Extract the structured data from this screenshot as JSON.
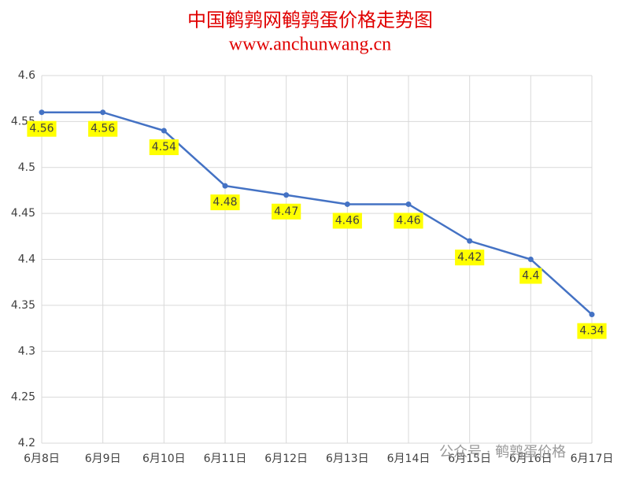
{
  "chart_data": {
    "type": "line",
    "title": "中国鹌鹑网鹌鹑蛋价格走势图",
    "subtitle": "www.anchunwang.cn",
    "categories": [
      "6月8日",
      "6月9日",
      "6月10日",
      "6月11日",
      "6月12日",
      "6月13日",
      "6月14日",
      "6月15日",
      "6月16日",
      "6月17日"
    ],
    "series": [
      {
        "name": "鹌鹑蛋价格",
        "color": "#4472c4",
        "values": [
          4.56,
          4.56,
          4.54,
          4.48,
          4.47,
          4.46,
          4.46,
          4.42,
          4.4,
          4.34
        ]
      }
    ],
    "ylim": [
      4.2,
      4.6
    ],
    "yticks": [
      4.2,
      4.25,
      4.3,
      4.35,
      4.4,
      4.45,
      4.5,
      4.55,
      4.6
    ],
    "grid": true,
    "label_color": "#ffff00",
    "watermark": "公众号 · 鹌鹑蛋价格"
  }
}
